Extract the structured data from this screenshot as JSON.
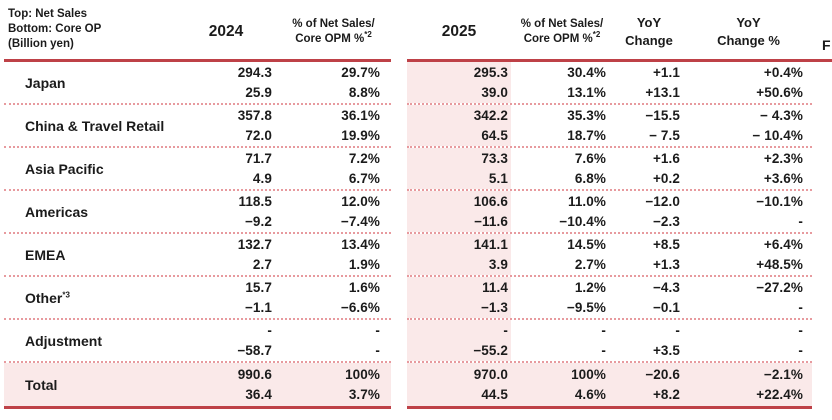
{
  "title_block": {
    "line1": "Top: Net Sales",
    "line2": "Bottom: Core OP",
    "line3": "(Billion yen)"
  },
  "columns": {
    "y2024": "2024",
    "y2025": "2025",
    "pct_line1": "% of Net Sales/",
    "pct_line2": "Core OPM %",
    "pct_sup": "*2",
    "yoy_line1": "YoY",
    "yoy_line2": "Change",
    "yoypct_line1": "YoY",
    "yoypct_line2": "Change %",
    "right_cutoff": "F"
  },
  "colors": {
    "accent_red": "#BE4147",
    "dotted_line": "#E79A9E",
    "pink_bg": "#FAE9E9",
    "text": "#1b1b1b"
  },
  "rows": [
    {
      "label": "Japan",
      "sup": "",
      "v2024": [
        "294.3",
        "25.9"
      ],
      "p2024": [
        "29.7%",
        "8.8%"
      ],
      "v2025": [
        "295.3",
        "39.0"
      ],
      "p2025": [
        "30.4%",
        "13.1%"
      ],
      "yoy": [
        "+1.1",
        "+13.1"
      ],
      "yoypct": [
        "+0.4%",
        "+50.6%"
      ],
      "total": false
    },
    {
      "label": "China & Travel Retail",
      "sup": "",
      "v2024": [
        "357.8",
        "72.0"
      ],
      "p2024": [
        "36.1%",
        "19.9%"
      ],
      "v2025": [
        "342.2",
        "64.5"
      ],
      "p2025": [
        "35.3%",
        "18.7%"
      ],
      "yoy": [
        "−15.5",
        "− 7.5"
      ],
      "yoypct": [
        "− 4.3%",
        "− 10.4%"
      ],
      "total": false
    },
    {
      "label": "Asia Pacific",
      "sup": "",
      "v2024": [
        "71.7",
        "4.9"
      ],
      "p2024": [
        "7.2%",
        "6.7%"
      ],
      "v2025": [
        "73.3",
        "5.1"
      ],
      "p2025": [
        "7.6%",
        "6.8%"
      ],
      "yoy": [
        "+1.6",
        "+0.2"
      ],
      "yoypct": [
        "+2.3%",
        "+3.6%"
      ],
      "total": false
    },
    {
      "label": "Americas",
      "sup": "",
      "v2024": [
        "118.5",
        "−9.2"
      ],
      "p2024": [
        "12.0%",
        "−7.4%"
      ],
      "v2025": [
        "106.6",
        "−11.6"
      ],
      "p2025": [
        "11.0%",
        "−10.4%"
      ],
      "yoy": [
        "−12.0",
        "−2.3"
      ],
      "yoypct": [
        "−10.1%",
        "-"
      ],
      "total": false
    },
    {
      "label": "EMEA",
      "sup": "",
      "v2024": [
        "132.7",
        "2.7"
      ],
      "p2024": [
        "13.4%",
        "1.9%"
      ],
      "v2025": [
        "141.1",
        "3.9"
      ],
      "p2025": [
        "14.5%",
        "2.7%"
      ],
      "yoy": [
        "+8.5",
        "+1.3"
      ],
      "yoypct": [
        "+6.4%",
        "+48.5%"
      ],
      "total": false
    },
    {
      "label": "Other",
      "sup": "*3",
      "v2024": [
        "15.7",
        "−1.1"
      ],
      "p2024": [
        "1.6%",
        "−6.6%"
      ],
      "v2025": [
        "11.4",
        "−1.3"
      ],
      "p2025": [
        "1.2%",
        "−9.5%"
      ],
      "yoy": [
        "−4.3",
        "−0.1"
      ],
      "yoypct": [
        "−27.2%",
        "-"
      ],
      "total": false
    },
    {
      "label": "Adjustment",
      "sup": "",
      "v2024": [
        "-",
        "−58.7"
      ],
      "p2024": [
        "-",
        "-"
      ],
      "v2025": [
        "-",
        "−55.2"
      ],
      "p2025": [
        "-",
        "-"
      ],
      "yoy": [
        "-",
        "+3.5"
      ],
      "yoypct": [
        "-",
        "-"
      ],
      "total": false
    },
    {
      "label": "Total",
      "sup": "",
      "v2024": [
        "990.6",
        "36.4"
      ],
      "p2024": [
        "100%",
        "3.7%"
      ],
      "v2025": [
        "970.0",
        "44.5"
      ],
      "p2025": [
        "100%",
        "4.6%"
      ],
      "yoy": [
        "−20.6",
        "+8.2"
      ],
      "yoypct": [
        "−2.1%",
        "+22.4%"
      ],
      "total": true
    }
  ]
}
